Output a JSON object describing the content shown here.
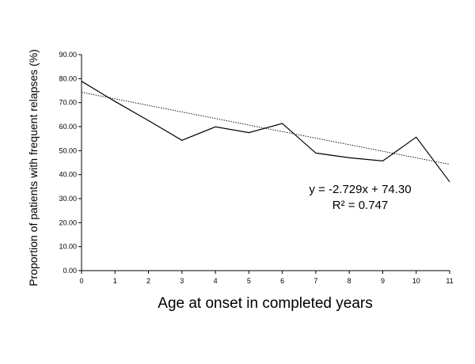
{
  "chart_data": {
    "type": "line",
    "title": "",
    "xlabel": "Age at onset in completed years",
    "ylabel": "Proportion of patients with frequent relapses (%)",
    "xlim": [
      0,
      11
    ],
    "ylim": [
      0,
      90
    ],
    "x_ticks": [
      "0",
      "1",
      "2",
      "3",
      "4",
      "5",
      "6",
      "7",
      "8",
      "9",
      "10",
      "11"
    ],
    "y_ticks": [
      "0.00",
      "10.00",
      "20.00",
      "30.00",
      "40.00",
      "50.00",
      "60.00",
      "70.00",
      "80.00",
      "90.00"
    ],
    "grid": false,
    "series": [
      {
        "x": [
          0,
          1,
          2,
          3,
          4,
          5,
          6,
          7,
          8,
          9,
          10,
          11
        ],
        "values": [
          78.9,
          70.5,
          62.5,
          54.3,
          59.9,
          57.5,
          61.3,
          49.0,
          47.0,
          45.7,
          55.6,
          37.0
        ]
      }
    ],
    "trendline": {
      "slope": -2.729,
      "intercept": 74.3,
      "style": "dotted",
      "equation_label": "y = -2.729x + 74.30",
      "r2_label": "R² = 0.747"
    }
  }
}
